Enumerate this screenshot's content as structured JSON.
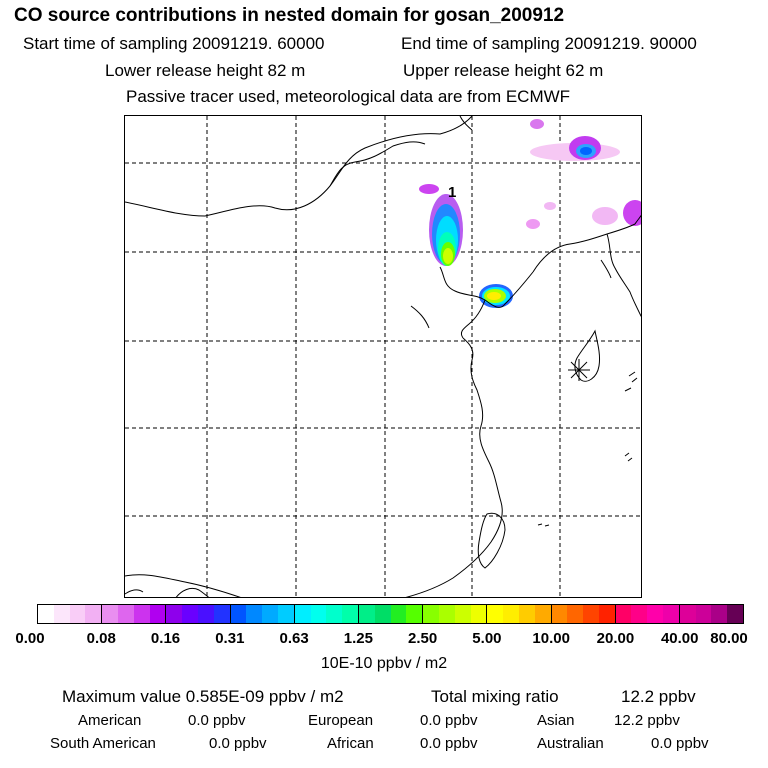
{
  "header": {
    "title": "CO  source contributions in nested domain for gosan_200912",
    "start_time": "Start time of sampling 20091219. 60000",
    "end_time": "End time of sampling 20091219. 90000",
    "lower_release": "Lower release height   82 m",
    "upper_release": "Upper release height   62 m",
    "tracer_note": "Passive tracer used, meteorological data are from ECMWF"
  },
  "map": {
    "site_label": "1",
    "receptor_marker": "asterisk-receptor"
  },
  "colorbar": {
    "unit": "10E-10 ppbv / m2",
    "ticks": [
      "0.00",
      "0.08",
      "0.16",
      "0.31",
      "0.63",
      "1.25",
      "2.50",
      "5.00",
      "10.00",
      "20.00",
      "40.00",
      "80.00"
    ],
    "colors": [
      [
        "#ffffff",
        "#fce6fb",
        "#f9cdf7",
        "#f2b0f3"
      ],
      [
        "#e98ef0",
        "#de66ee",
        "#cc33ee",
        "#b000f0"
      ],
      [
        "#8e00ec",
        "#6a00ff",
        "#4a10ff",
        "#2233ff"
      ],
      [
        "#0055ff",
        "#0088ff",
        "#00aaff",
        "#00ccff"
      ],
      [
        "#00eeff",
        "#00ffee",
        "#00ffcc",
        "#00ffaa"
      ],
      [
        "#00ee88",
        "#00dd66",
        "#22ee22",
        "#55ff00"
      ],
      [
        "#88ff00",
        "#aaff00",
        "#ccff00",
        "#eeff00"
      ],
      [
        "#ffff00",
        "#ffee00",
        "#ffcc00",
        "#ffaa00"
      ],
      [
        "#ff8800",
        "#ff6600",
        "#ff4400",
        "#ff2200"
      ],
      [
        "#ff0066",
        "#ff0088",
        "#ff00aa",
        "#ee00aa"
      ],
      [
        "#dd0099",
        "#cc0099",
        "#aa0088",
        "#660055"
      ]
    ]
  },
  "stats": {
    "max_value": "Maximum value  0.585E-09 ppbv / m2",
    "total_mixing": "Total mixing ratio",
    "total_mixing_value": "12.2 ppbv",
    "american_label": "American",
    "american_value": "0.0 ppbv",
    "european_label": "European",
    "european_value": "0.0 ppbv",
    "asian_label": "Asian",
    "asian_value": "12.2 ppbv",
    "south_american_label": "South American",
    "south_american_value": "0.0 ppbv",
    "african_label": "African",
    "african_value": "0.0 ppbv",
    "australian_label": "Australian",
    "australian_value": "0.0 ppbv"
  }
}
